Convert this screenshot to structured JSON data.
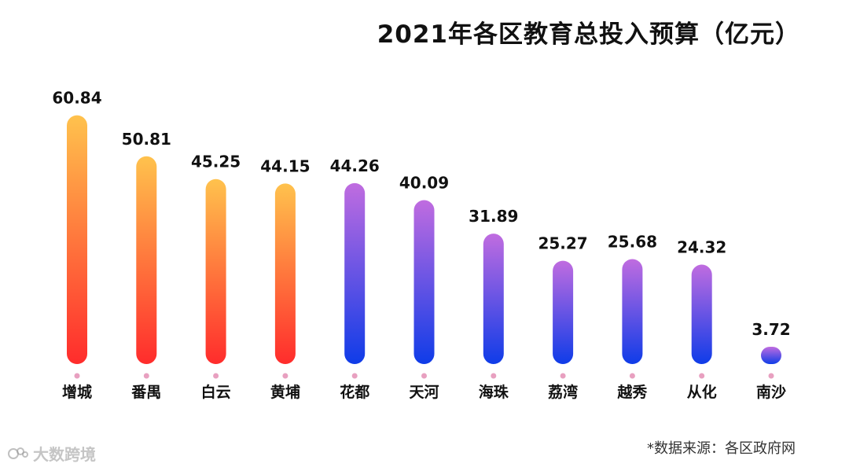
{
  "title": "2021年各区教育总投入预算（亿元）",
  "source_note": "*数据来源：各区政府网",
  "watermark": "大数跨境",
  "colors": {
    "warm_top": "#FFC24D",
    "warm_bottom": "#FF2C2C",
    "cool_top": "#C06CE0",
    "cool_bottom": "#0F3CE8",
    "dot": "#E8A0C0"
  },
  "chart_data": {
    "type": "bar",
    "title": "2021年各区教育总投入预算（亿元）",
    "categories": [
      "增城",
      "番禺",
      "白云",
      "黄埔",
      "花都",
      "天河",
      "海珠",
      "荔湾",
      "越秀",
      "从化",
      "南沙"
    ],
    "values": [
      60.84,
      50.81,
      45.25,
      44.15,
      44.26,
      40.09,
      31.89,
      25.27,
      25.68,
      24.32,
      3.72
    ],
    "value_labels": [
      "60.84",
      "50.81",
      "45.25",
      "44.15",
      "44.26",
      "40.09",
      "31.89",
      "25.27",
      "25.68",
      "24.32",
      "3.72"
    ],
    "color_group": [
      "warm",
      "warm",
      "warm",
      "warm",
      "cool",
      "cool",
      "cool",
      "cool",
      "cool",
      "cool",
      "cool"
    ],
    "xlabel": "",
    "ylabel": "",
    "grid": false,
    "legend": "none"
  }
}
